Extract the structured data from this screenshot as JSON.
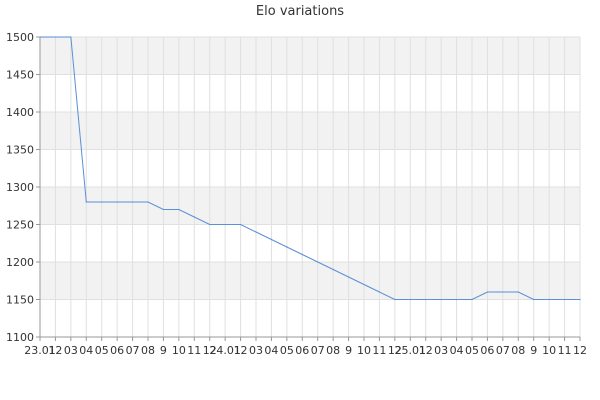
{
  "chart_data": {
    "type": "line",
    "title": "Elo variations",
    "xlabel": "",
    "ylabel": "",
    "ylim": [
      1100,
      1500
    ],
    "yticks": [
      1100,
      1150,
      1200,
      1250,
      1300,
      1350,
      1400,
      1450,
      1500
    ],
    "grid": true,
    "x_tick_labels": [
      "23.01",
      "12",
      "03",
      "04",
      "05",
      "06",
      "07",
      "08",
      "9",
      "10",
      "11",
      "12",
      "24.01",
      "12",
      "03",
      "04",
      "05",
      "06",
      "07",
      "08",
      "9",
      "10",
      "11",
      "12",
      "25.01",
      "12",
      "03",
      "04",
      "05",
      "06",
      "07",
      "08",
      "9",
      "10",
      "11",
      "12"
    ],
    "x": [
      "23.01",
      "12",
      "03",
      "04",
      "05",
      "06",
      "07",
      "08",
      "9",
      "10",
      "11",
      "12",
      "24.01",
      "12",
      "03",
      "04",
      "05",
      "06",
      "07",
      "08",
      "9",
      "10",
      "11",
      "12",
      "25.01",
      "12",
      "03",
      "04",
      "05",
      "06",
      "07",
      "08",
      "9",
      "10",
      "11",
      "12"
    ],
    "series": [
      {
        "values": [
          1500,
          1500,
          1500,
          1280,
          1280,
          1280,
          1280,
          1280,
          1270,
          1270,
          1260,
          1250,
          1250,
          1250,
          1240,
          1230,
          1220,
          1210,
          1200,
          1190,
          1180,
          1170,
          1160,
          1150,
          1150,
          1150,
          1150,
          1150,
          1150,
          1160,
          1160,
          1160,
          1150,
          1150,
          1150,
          1150
        ]
      }
    ],
    "colors": {
      "line": "#5b8fd6",
      "band": "#f2f2f2",
      "grid": "#e0e0e0",
      "axis": "#999999"
    }
  }
}
